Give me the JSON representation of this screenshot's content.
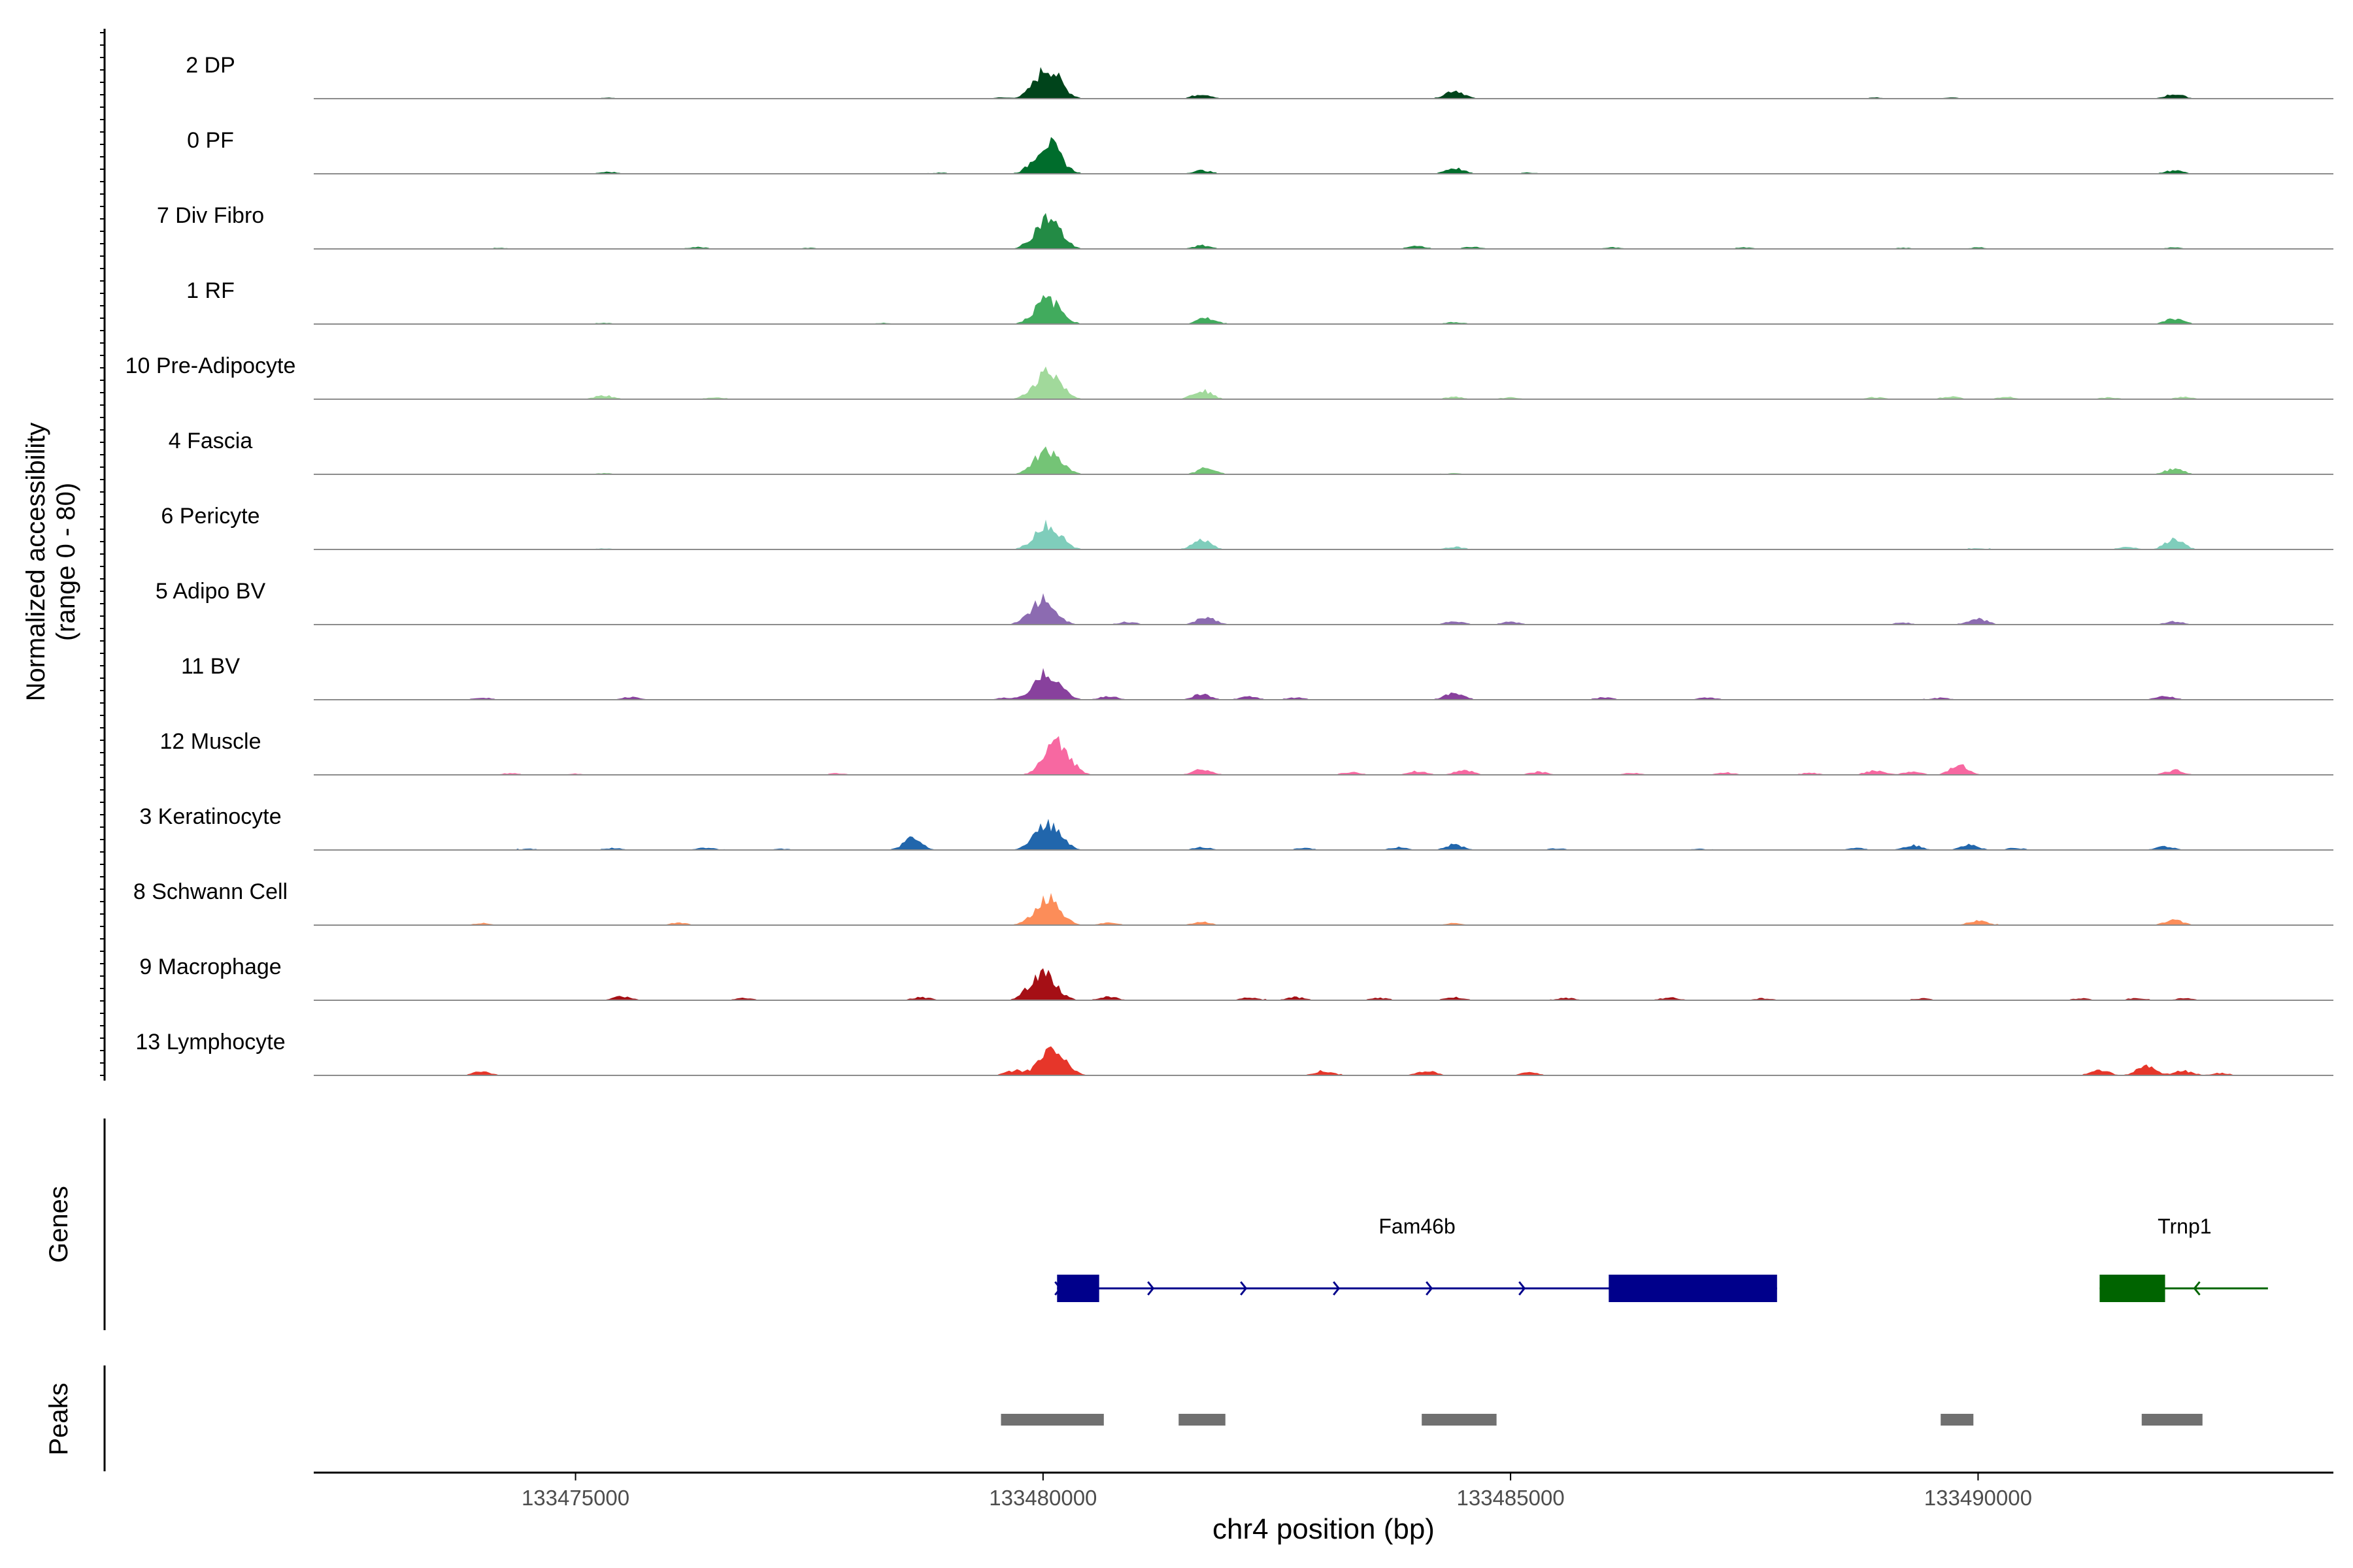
{
  "chart_data": {
    "type": "area",
    "title": "",
    "ylabel_line1": "Normalized accessibility",
    "ylabel_line2": "(range 0 - 80)",
    "xlabel": "chr4 position (bp)",
    "xlim": [
      133472200,
      133493800
    ],
    "ylim": [
      0,
      80
    ],
    "xticks": [
      133475000,
      133480000,
      133485000,
      133490000
    ],
    "xtick_labels": [
      "133475000",
      "133480000",
      "133485000",
      "133490000"
    ],
    "series": [
      {
        "name": "2 DP",
        "color": "#00441B",
        "peaks": [
          [
            133475350,
            3
          ],
          [
            133479540,
            3
          ],
          [
            133480050,
            80
          ],
          [
            133481700,
            12
          ],
          [
            133484400,
            22
          ],
          [
            133488900,
            3
          ],
          [
            133489700,
            3
          ],
          [
            133492100,
            12
          ]
        ]
      },
      {
        "name": "0 PF",
        "color": "#006D2C",
        "peaks": [
          [
            133475350,
            5
          ],
          [
            133478900,
            3
          ],
          [
            133480050,
            80
          ],
          [
            133481700,
            9
          ],
          [
            133484400,
            15
          ],
          [
            133485200,
            3
          ],
          [
            133492100,
            9
          ]
        ]
      },
      {
        "name": "7 Div Fibro",
        "color": "#238B45",
        "peaks": [
          [
            133474200,
            3
          ],
          [
            133476300,
            5
          ],
          [
            133477500,
            3
          ],
          [
            133480050,
            80
          ],
          [
            133481700,
            9
          ],
          [
            133484000,
            8
          ],
          [
            133484600,
            6
          ],
          [
            133486100,
            4
          ],
          [
            133487500,
            4
          ],
          [
            133489200,
            3
          ],
          [
            133490000,
            4
          ],
          [
            133492100,
            4
          ]
        ]
      },
      {
        "name": "1 RF",
        "color": "#41AB5D",
        "peaks": [
          [
            133475300,
            3
          ],
          [
            133478300,
            3
          ],
          [
            133480050,
            65
          ],
          [
            133481750,
            16
          ],
          [
            133484400,
            5
          ],
          [
            133492100,
            14
          ]
        ]
      },
      {
        "name": "10 Pre-Adipocyte",
        "color": "#A1D99B",
        "peaks": [
          [
            133475300,
            10
          ],
          [
            133476500,
            5
          ],
          [
            133480050,
            75
          ],
          [
            133481700,
            24
          ],
          [
            133484400,
            6
          ],
          [
            133485000,
            5
          ],
          [
            133488900,
            5
          ],
          [
            133489700,
            7
          ],
          [
            133490300,
            6
          ],
          [
            133491400,
            5
          ],
          [
            133492200,
            6
          ]
        ]
      },
      {
        "name": "4 Fascia",
        "color": "#74C476",
        "peaks": [
          [
            133475300,
            3
          ],
          [
            133480050,
            65
          ],
          [
            133481750,
            17
          ],
          [
            133484400,
            3
          ],
          [
            133492100,
            15
          ]
        ]
      },
      {
        "name": "6 Pericyte",
        "color": "#7FCDBB",
        "peaks": [
          [
            133475300,
            3
          ],
          [
            133480050,
            65
          ],
          [
            133481700,
            24
          ],
          [
            133484400,
            7
          ],
          [
            133491600,
            6
          ],
          [
            133492100,
            26
          ],
          [
            133490000,
            3
          ]
        ]
      },
      {
        "name": "5 Adipo BV",
        "color": "#8C6BB1",
        "peaks": [
          [
            133480000,
            65
          ],
          [
            133480900,
            7
          ],
          [
            133481750,
            20
          ],
          [
            133484400,
            9
          ],
          [
            133485000,
            7
          ],
          [
            133489200,
            5
          ],
          [
            133490000,
            15
          ],
          [
            133492100,
            8
          ]
        ]
      },
      {
        "name": "11 BV",
        "color": "#88419D",
        "peaks": [
          [
            133474000,
            6
          ],
          [
            133475600,
            7
          ],
          [
            133479600,
            5
          ],
          [
            133480050,
            70
          ],
          [
            133480700,
            9
          ],
          [
            133481700,
            14
          ],
          [
            133482200,
            8
          ],
          [
            133482700,
            6
          ],
          [
            133484400,
            20
          ],
          [
            133486000,
            6
          ],
          [
            133487100,
            6
          ],
          [
            133489600,
            5
          ],
          [
            133492000,
            10
          ]
        ]
      },
      {
        "name": "12 Muscle",
        "color": "#F768A1",
        "peaks": [
          [
            133474300,
            4
          ],
          [
            133475000,
            3
          ],
          [
            133477800,
            4
          ],
          [
            133480150,
            80
          ],
          [
            133481700,
            14
          ],
          [
            133483300,
            7
          ],
          [
            133484000,
            10
          ],
          [
            133484500,
            12
          ],
          [
            133485300,
            8
          ],
          [
            133486300,
            5
          ],
          [
            133487300,
            6
          ],
          [
            133488200,
            5
          ],
          [
            133488900,
            12
          ],
          [
            133489300,
            8
          ],
          [
            133489800,
            25
          ],
          [
            133492100,
            12
          ]
        ]
      },
      {
        "name": "3 Keratinocyte",
        "color": "#2166AC",
        "peaks": [
          [
            133474500,
            3
          ],
          [
            133475400,
            5
          ],
          [
            133476400,
            6
          ],
          [
            133477200,
            3
          ],
          [
            133478600,
            30
          ],
          [
            133480050,
            68
          ],
          [
            133481700,
            7
          ],
          [
            133482800,
            5
          ],
          [
            133483800,
            7
          ],
          [
            133484400,
            14
          ],
          [
            133485500,
            4
          ],
          [
            133487000,
            3
          ],
          [
            133488700,
            5
          ],
          [
            133489300,
            12
          ],
          [
            133489900,
            14
          ],
          [
            133490400,
            5
          ],
          [
            133492000,
            10
          ]
        ]
      },
      {
        "name": "8 Schwann Cell",
        "color": "#FC8D59",
        "peaks": [
          [
            133474000,
            5
          ],
          [
            133476100,
            6
          ],
          [
            133480050,
            70
          ],
          [
            133480700,
            6
          ],
          [
            133481700,
            8
          ],
          [
            133484400,
            5
          ],
          [
            133490000,
            12
          ],
          [
            133492100,
            14
          ]
        ]
      },
      {
        "name": "9 Macrophage",
        "color": "#A50F15",
        "peaks": [
          [
            133475500,
            10
          ],
          [
            133476800,
            6
          ],
          [
            133478700,
            8
          ],
          [
            133480000,
            75
          ],
          [
            133480700,
            9
          ],
          [
            133482200,
            7
          ],
          [
            133482700,
            8
          ],
          [
            133483600,
            6
          ],
          [
            133484400,
            8
          ],
          [
            133485600,
            6
          ],
          [
            133486700,
            7
          ],
          [
            133487700,
            5
          ],
          [
            133489400,
            5
          ],
          [
            133491100,
            5
          ],
          [
            133491700,
            6
          ],
          [
            133492200,
            5
          ]
        ]
      },
      {
        "name": "13 Lymphocyte",
        "color": "#E6362A",
        "peaks": [
          [
            133474000,
            10
          ],
          [
            133479700,
            12
          ],
          [
            133480100,
            65
          ],
          [
            133483000,
            12
          ],
          [
            133484100,
            12
          ],
          [
            133485200,
            8
          ],
          [
            133491300,
            14
          ],
          [
            133491800,
            24
          ],
          [
            133492200,
            12
          ],
          [
            133492600,
            6
          ]
        ]
      }
    ],
    "genes": {
      "Fam46b": {
        "label": "Fam46b",
        "color": "#00008B",
        "strand": "+",
        "start": 133480150,
        "end": 133487850,
        "exons": [
          [
            133480150,
            133480600
          ],
          [
            133486050,
            133487850
          ]
        ]
      },
      "Trnp1": {
        "label": "Trnp1",
        "color": "#006400",
        "strand": "-",
        "start": 133491300,
        "end": 133493100,
        "exons": [
          [
            133491300,
            133492000
          ]
        ]
      }
    },
    "peaks_track": [
      [
        133479550,
        133480650
      ],
      [
        133481450,
        133481950
      ],
      [
        133484050,
        133484850
      ],
      [
        133489600,
        133489950
      ],
      [
        133491750,
        133492400
      ]
    ],
    "panel_labels": {
      "genes": "Genes",
      "peaks": "Peaks"
    }
  }
}
